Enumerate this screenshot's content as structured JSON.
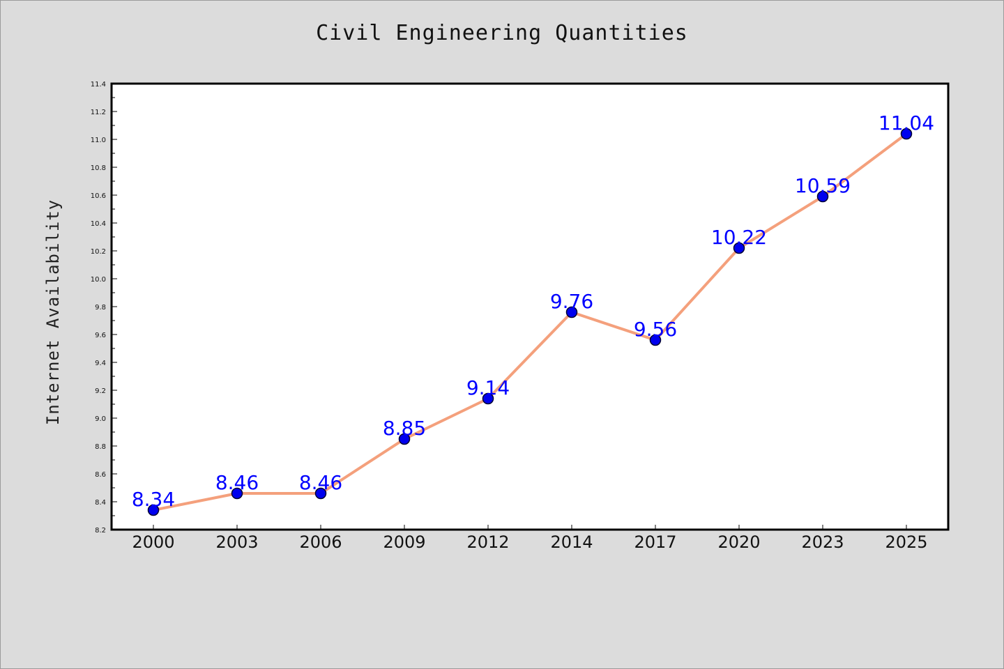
{
  "chart_data": {
    "type": "line",
    "title": "Civil Engineering Quantities",
    "xlabel": "",
    "ylabel": "Internet Availability",
    "categories": [
      "2000",
      "2003",
      "2006",
      "2009",
      "2012",
      "2014",
      "2017",
      "2020",
      "2023",
      "2025"
    ],
    "series": [
      {
        "values": [
          8.34,
          8.46,
          8.46,
          8.85,
          9.14,
          9.76,
          9.56,
          10.22,
          10.59,
          11.04
        ],
        "data_labels": [
          "8.34",
          "8.46",
          "8.46",
          "8.85",
          "9.14",
          "9.76",
          "9.56",
          "10.22",
          "10.59",
          "11.04"
        ]
      }
    ],
    "ylim": [
      8.2,
      11.4
    ],
    "yticks": [
      "8.2",
      "8.4",
      "8.6",
      "8.8",
      "9.0",
      "9.2",
      "9.4",
      "9.6",
      "9.8",
      "10.0",
      "10.2",
      "10.4",
      "10.6",
      "10.8",
      "11.0",
      "11.2",
      "11.4"
    ],
    "grid": false,
    "legend": "none",
    "colors": {
      "line": "#f4a07c",
      "marker_fill": "#0000ee",
      "marker_edge": "#000033",
      "label": "#0000ff",
      "background": "#dcdcdc",
      "plot_area": "#ffffff"
    }
  }
}
